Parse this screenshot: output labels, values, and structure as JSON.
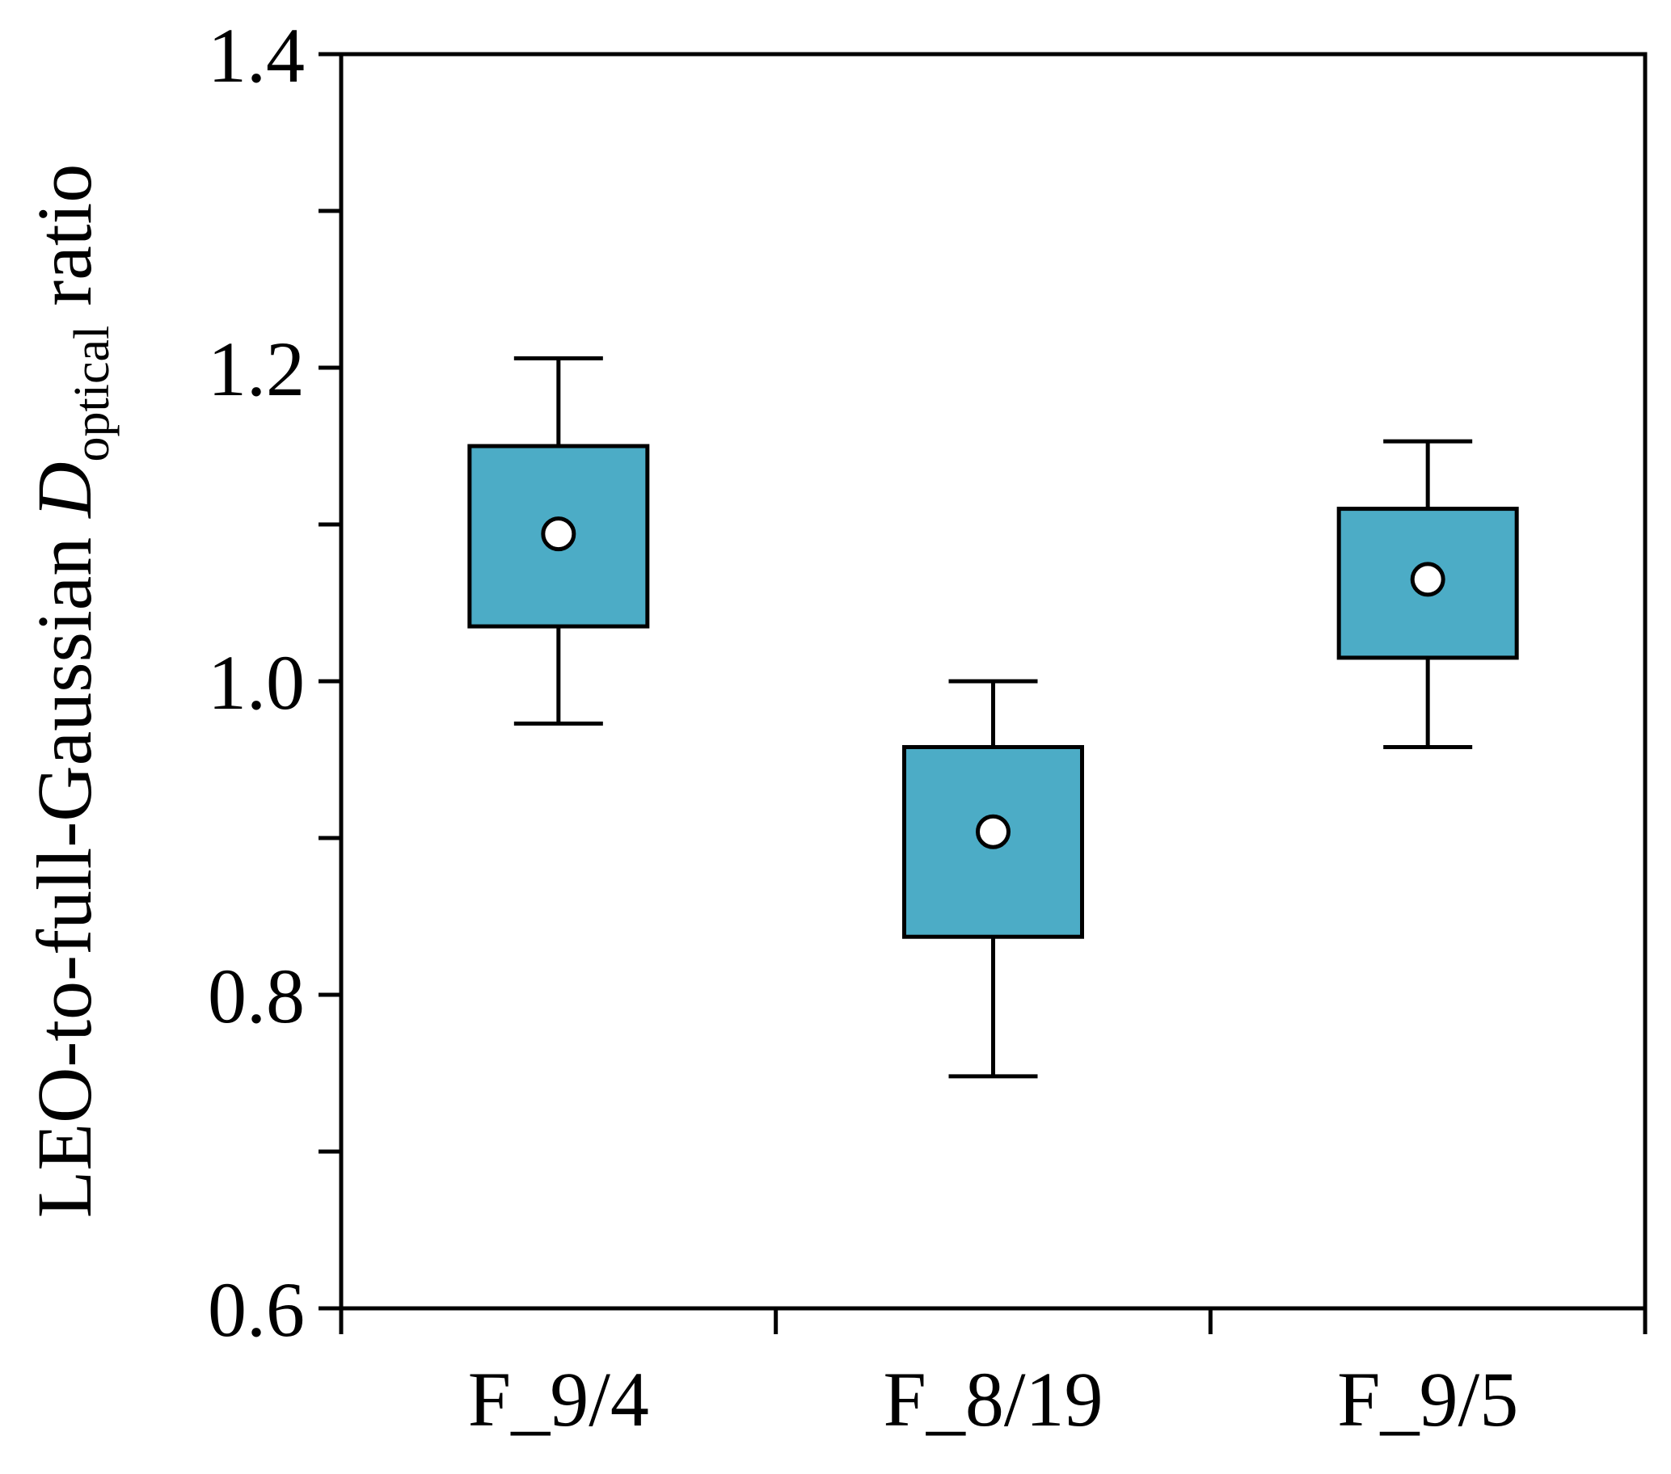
{
  "chart_data": {
    "type": "box",
    "ylabel": {
      "prefix": "LEO-to-full-Gaussian ",
      "symbol": "D",
      "subscript": "optical",
      "suffix": " ratio"
    },
    "ylim": [
      0.6,
      1.4
    ],
    "yticks": [
      "0.6",
      "0.8",
      "1.0",
      "1.2",
      "1.4"
    ],
    "categories": [
      "F_9/4",
      "F_8/19",
      "F_9/5"
    ],
    "series": [
      {
        "values": [
          {
            "whisker_low": 0.973,
            "q1": 1.035,
            "q3": 1.15,
            "whisker_high": 1.206,
            "mean": 1.094
          },
          {
            "whisker_low": 0.748,
            "q1": 0.837,
            "q3": 0.958,
            "whisker_high": 1.0,
            "mean": 0.904
          },
          {
            "whisker_low": 0.958,
            "q1": 1.015,
            "q3": 1.11,
            "whisker_high": 1.153,
            "mean": 1.065
          }
        ]
      }
    ],
    "box_color": "#4cacc6",
    "mean_marker_color": "#ffffff",
    "grid": false,
    "legend": "none"
  }
}
